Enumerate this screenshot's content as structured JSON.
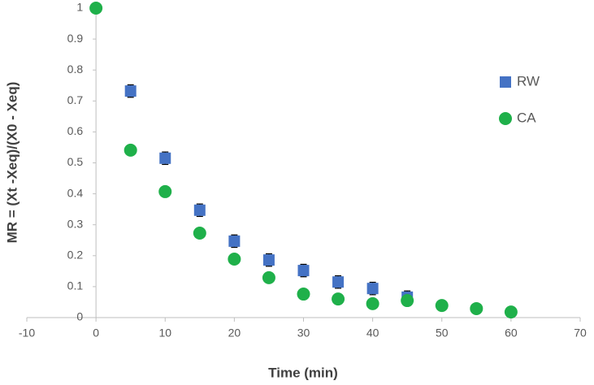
{
  "chart_data": {
    "type": "scatter",
    "xlabel": "Time (min)",
    "ylabel": "MR = (Xt -Xeq)/(X0 - Xeq)",
    "xlim": [
      -10,
      70
    ],
    "xticks": [
      -10,
      0,
      10,
      20,
      30,
      40,
      50,
      60,
      70
    ],
    "ylim": [
      0,
      1
    ],
    "yticks": [
      0,
      0.1,
      0.2,
      0.3,
      0.4,
      0.5,
      0.6,
      0.7,
      0.8,
      0.9,
      1
    ],
    "legend": "right",
    "series": [
      {
        "name": "RW",
        "color": "#4472c4",
        "marker": "square",
        "x": [
          5,
          10,
          15,
          20,
          25,
          30,
          35,
          40,
          45
        ],
        "values": [
          0.732,
          0.515,
          0.347,
          0.247,
          0.186,
          0.152,
          0.115,
          0.094,
          0.066
        ],
        "errors": [
          0.02,
          0.02,
          0.02,
          0.02,
          0.02,
          0.02,
          0.02,
          0.02,
          0.02
        ]
      },
      {
        "name": "CA",
        "color": "#1fb04a",
        "marker": "circle",
        "x": [
          0,
          5,
          10,
          15,
          20,
          25,
          30,
          35,
          40,
          45,
          50,
          55,
          60
        ],
        "values": [
          1,
          0.541,
          0.407,
          0.273,
          0.189,
          0.129,
          0.076,
          0.06,
          0.045,
          0.055,
          0.039,
          0.029,
          0.018
        ],
        "errors": [
          0.01,
          0.015,
          0.015,
          0.015,
          0.015,
          0.015,
          0.015,
          0.015,
          0.015,
          0.015,
          0.015,
          0.015,
          0.015
        ]
      }
    ]
  }
}
